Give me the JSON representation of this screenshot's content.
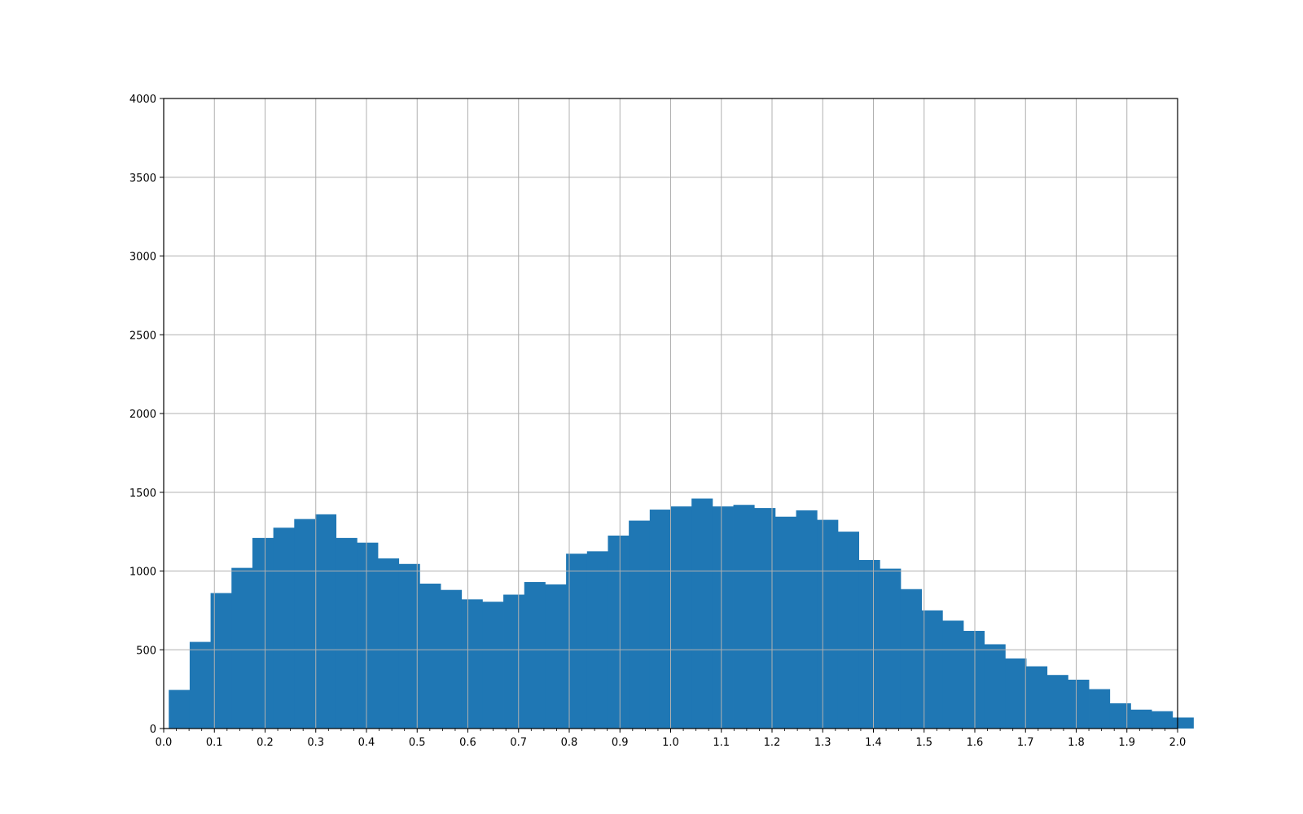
{
  "chart_data": {
    "type": "bar",
    "title": "",
    "xlabel": "",
    "ylabel": "",
    "xlim": [
      0.0,
      2.0
    ],
    "ylim": [
      0,
      4000
    ],
    "grid": true,
    "bar_color": "#1f77b4",
    "grid_color": "#b0b0b0",
    "x_ticks": [
      "0.0",
      "0.1",
      "0.2",
      "0.3",
      "0.4",
      "0.5",
      "0.6",
      "0.7",
      "0.8",
      "0.9",
      "1.0",
      "1.1",
      "1.2",
      "1.3",
      "1.4",
      "1.5",
      "1.6",
      "1.7",
      "1.8",
      "1.9",
      "2.0"
    ],
    "y_ticks": [
      "0",
      "500",
      "1000",
      "1500",
      "2000",
      "2500",
      "3000",
      "3500",
      "4000"
    ],
    "bin_start": 0.01,
    "bin_width": 0.04125,
    "values": [
      245,
      550,
      860,
      1020,
      1210,
      1275,
      1330,
      1360,
      1210,
      1180,
      1080,
      1045,
      920,
      880,
      820,
      805,
      850,
      930,
      915,
      1110,
      1125,
      1225,
      1320,
      1390,
      1410,
      1460,
      1410,
      1420,
      1400,
      1345,
      1385,
      1325,
      1250,
      1070,
      1015,
      885,
      750,
      685,
      620,
      535,
      445,
      395,
      340,
      310,
      250,
      160,
      120,
      110,
      70
    ]
  }
}
